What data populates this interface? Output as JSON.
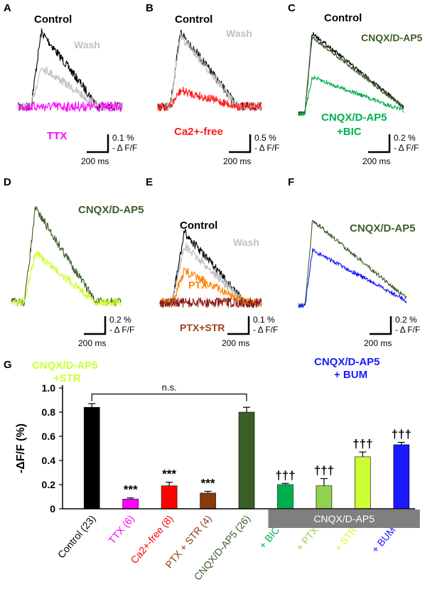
{
  "panels": [
    {
      "letter": "A",
      "labels": [
        {
          "text": "Control",
          "color": "#000000"
        },
        {
          "text": "Wash",
          "color": "#c0c0c0"
        },
        {
          "text": "TTX",
          "color": "#ff00ff"
        }
      ],
      "scale": {
        "y": "0.1 %",
        "unit": "- Δ F/F",
        "x": "200 ms"
      },
      "traces": [
        {
          "name": "Control",
          "color": "#000000",
          "peak": 0.84,
          "kind": "slow"
        },
        {
          "name": "Wash",
          "color": "#c0c0c0",
          "peak": 0.45,
          "kind": "slow"
        },
        {
          "name": "TTX",
          "color": "#ff00ff",
          "peak": 0.0,
          "kind": "flat"
        }
      ]
    },
    {
      "letter": "B",
      "labels": [
        {
          "text": "Control",
          "color": "#000000"
        },
        {
          "text": "Wash",
          "color": "#c0c0c0"
        },
        {
          "text": "Ca2+-free",
          "color": "#ff1a1a"
        }
      ],
      "scale": {
        "y": "0.5 %",
        "unit": "- Δ F/F",
        "x": "200 ms"
      },
      "traces": [
        {
          "name": "Control",
          "color": "#000000",
          "peak": 0.84,
          "kind": "slow"
        },
        {
          "name": "Wash",
          "color": "#c0c0c0",
          "peak": 0.8,
          "kind": "slow"
        },
        {
          "name": "Ca2+-free",
          "color": "#ff1a1a",
          "peak": 0.18,
          "kind": "slow"
        }
      ]
    },
    {
      "letter": "C",
      "labels": [
        {
          "text": "Control",
          "color": "#000000"
        },
        {
          "text": "CNQX/D-AP5",
          "color": "#3b5e28"
        },
        {
          "text": "CNQX/D-AP5",
          "color": "#00b050"
        },
        {
          "text": "+BIC",
          "color": "#00b050"
        }
      ],
      "scale": {
        "y": "0.2 %",
        "unit": "- Δ F/F",
        "x": "200 ms"
      },
      "traces": [
        {
          "name": "Control",
          "color": "#000000",
          "peak": 0.84,
          "kind": "fast"
        },
        {
          "name": "CNQX/D-AP5",
          "color": "#3b5e28",
          "peak": 0.8,
          "kind": "fast"
        },
        {
          "name": "CNQX/D-AP5 +BIC",
          "color": "#00b050",
          "peak": 0.38,
          "kind": "fast"
        }
      ]
    },
    {
      "letter": "D",
      "labels": [
        {
          "text": "CNQX/D-AP5",
          "color": "#3b5e28"
        },
        {
          "text": "CNQX/D-AP5",
          "color": "#ccff33"
        },
        {
          "text": "+STR",
          "color": "#ccff33"
        }
      ],
      "scale": {
        "y": "0.2 %",
        "unit": "- Δ F/F",
        "x": "200 ms"
      },
      "traces": [
        {
          "name": "CNQX/D-AP5",
          "color": "#3b5e28",
          "peak": 0.8,
          "kind": "slow"
        },
        {
          "name": "CNQX/D-AP5 +STR",
          "color": "#ccff33",
          "peak": 0.42,
          "kind": "slow"
        }
      ]
    },
    {
      "letter": "E",
      "labels": [
        {
          "text": "Control",
          "color": "#000000"
        },
        {
          "text": "Wash",
          "color": "#c0c0c0"
        },
        {
          "text": "PTX",
          "color": "#ff8000"
        },
        {
          "text": "PTX+STR",
          "color": "#a0401a"
        }
      ],
      "scale": {
        "y": "0.1 %",
        "unit": "- Δ F/F",
        "x": "200 ms"
      },
      "traces": [
        {
          "name": "Control",
          "color": "#000000",
          "peak": 0.84,
          "kind": "mid"
        },
        {
          "name": "Wash",
          "color": "#c0c0c0",
          "peak": 0.68,
          "kind": "mid"
        },
        {
          "name": "PTX",
          "color": "#ff8000",
          "peak": 0.38,
          "kind": "mid"
        },
        {
          "name": "PTX+STR",
          "color": "#8b1a1a",
          "peak": 0.06,
          "kind": "flat"
        }
      ]
    },
    {
      "letter": "F",
      "labels": [
        {
          "text": "CNQX/D-AP5",
          "color": "#3b5e28"
        },
        {
          "text": "CNQX/D-AP5",
          "color": "#1a1aff"
        },
        {
          "text": "+ BUM",
          "color": "#1a1aff"
        }
      ],
      "scale": {
        "y": "0.2 %",
        "unit": "- Δ F/F",
        "x": "200 ms"
      },
      "traces": [
        {
          "name": "CNQX/D-AP5",
          "color": "#3b5e28",
          "peak": 0.8,
          "kind": "fast"
        },
        {
          "name": "CNQX/D-AP5 + BUM",
          "color": "#1a1aff",
          "peak": 0.52,
          "kind": "fast"
        }
      ]
    }
  ],
  "chart_data": {
    "type": "bar",
    "panel_letter": "G",
    "ylabel": "-ΔF/F (%)",
    "ylim": [
      0,
      1.0
    ],
    "yticks": [
      "0",
      "0.2",
      "0.4",
      "0.6",
      "0.8",
      "1.0"
    ],
    "categories": [
      "Control (23)",
      "TTX (6)",
      "Ca2+-free (8)",
      "PTX + STR (4)",
      "CNQX/D-AP5 (26)",
      "+ BIC (6)",
      "+ PTX (4)",
      "+ STR (7)",
      "+ BUM (4)"
    ],
    "values": [
      0.84,
      0.08,
      0.19,
      0.13,
      0.8,
      0.2,
      0.19,
      0.43,
      0.53
    ],
    "errors": [
      0.03,
      0.01,
      0.03,
      0.015,
      0.04,
      0.01,
      0.06,
      0.04,
      0.02
    ],
    "colors": [
      "#000000",
      "#ff00ff",
      "#ff0000",
      "#8b3a0e",
      "#3b5e28",
      "#00b050",
      "#92d050",
      "#ccff33",
      "#1a1aff"
    ],
    "label_colors": [
      "#000000",
      "#ff00ff",
      "#ff0000",
      "#8b3a0e",
      "#3b5e28",
      "#00b050",
      "#92d050",
      "#ccff33",
      "#1a1aff"
    ],
    "annotations": [
      "",
      "***",
      "***",
      "***",
      "",
      "†††",
      "†††",
      "†††",
      "†††"
    ],
    "significance_bracket": {
      "from": 0,
      "to": 4,
      "text": "n.s."
    },
    "group_box": {
      "from": 5,
      "to": 8,
      "text": "CNQX/D-AP5",
      "color": "#7f7f7f"
    },
    "grid": false
  }
}
